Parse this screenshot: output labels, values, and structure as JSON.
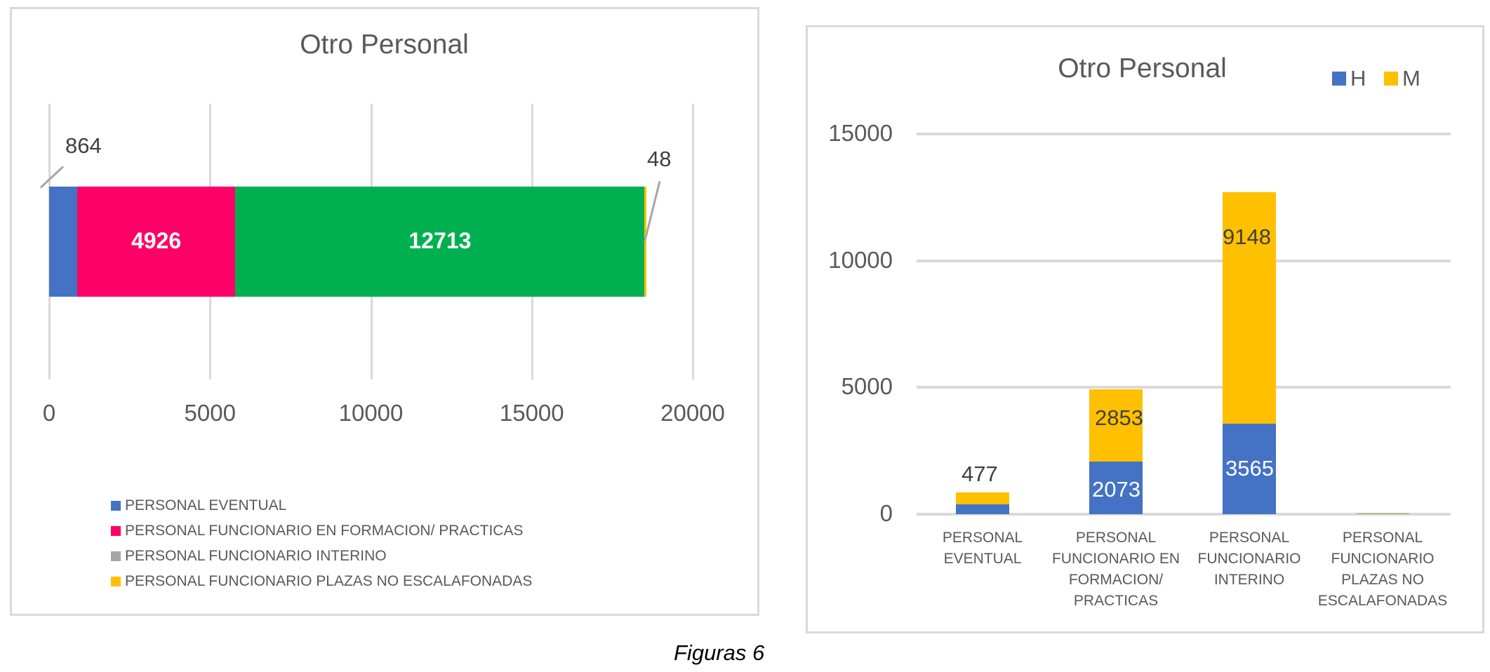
{
  "colors": {
    "eventual": "#4472C4",
    "formacion": "#FF0066",
    "interino": "#00B050",
    "interino_legend": "#A5A5A5",
    "escalafonadas": "#FFC000",
    "h": "#4472C4",
    "m": "#FFC000",
    "grid": "#D9D9D9",
    "text": "#595959"
  },
  "left_chart": {
    "title": "Otro Personal",
    "ticks": [
      "0",
      "5000",
      "10000",
      "15000",
      "20000"
    ],
    "labels": {
      "eventual": "864",
      "formacion": "4926",
      "interino": "12713",
      "escalafonadas": "48"
    },
    "legend": [
      {
        "label": "PERSONAL EVENTUAL",
        "color": "#4472C4"
      },
      {
        "label": "PERSONAL FUNCIONARIO EN FORMACION/ PRACTICAS",
        "color": "#FF0066"
      },
      {
        "label": "PERSONAL FUNCIONARIO INTERINO",
        "color": "#A5A5A5"
      },
      {
        "label": "PERSONAL FUNCIONARIO PLAZAS NO ESCALAFONADAS",
        "color": "#FFC000"
      }
    ]
  },
  "right_chart": {
    "title": "Otro Personal",
    "legend": [
      {
        "label": "H",
        "color": "#4472C4"
      },
      {
        "label": "M",
        "color": "#FFC000"
      }
    ],
    "ticks": [
      "0",
      "5000",
      "10000",
      "15000"
    ],
    "categories": [
      {
        "line1": "PERSONAL",
        "line2": "EVENTUAL",
        "line3": "",
        "line4": ""
      },
      {
        "line1": "PERSONAL",
        "line2": "FUNCIONARIO EN",
        "line3": "FORMACION/",
        "line4": "PRACTICAS"
      },
      {
        "line1": "PERSONAL",
        "line2": "FUNCIONARIO",
        "line3": "INTERINO",
        "line4": ""
      },
      {
        "line1": "PERSONAL",
        "line2": "FUNCIONARIO",
        "line3": "PLAZAS NO",
        "line4": "ESCALAFONADAS"
      }
    ],
    "labels": {
      "eventual_m": "477",
      "formacion_h": "2073",
      "formacion_m": "2853",
      "interino_h": "3565",
      "interino_m": "9148"
    }
  },
  "caption": "Figuras 6",
  "chart_data": [
    {
      "type": "bar",
      "orientation": "horizontal-stacked",
      "title": "Otro Personal",
      "categories": [
        ""
      ],
      "series": [
        {
          "name": "PERSONAL EVENTUAL",
          "values": [
            864
          ]
        },
        {
          "name": "PERSONAL FUNCIONARIO EN FORMACION/ PRACTICAS",
          "values": [
            4926
          ]
        },
        {
          "name": "PERSONAL FUNCIONARIO INTERINO",
          "values": [
            12713
          ]
        },
        {
          "name": "PERSONAL FUNCIONARIO PLAZAS NO ESCALAFONADAS",
          "values": [
            48
          ]
        }
      ],
      "xlabel": "",
      "ylabel": "",
      "xlim": [
        0,
        20000
      ],
      "xticks": [
        0,
        5000,
        10000,
        15000,
        20000
      ],
      "grid": true,
      "legend_position": "bottom"
    },
    {
      "type": "bar",
      "orientation": "vertical-stacked",
      "title": "Otro Personal",
      "categories": [
        "PERSONAL EVENTUAL",
        "PERSONAL FUNCIONARIO EN FORMACION/ PRACTICAS",
        "PERSONAL FUNCIONARIO INTERINO",
        "PERSONAL FUNCIONARIO PLAZAS NO ESCALAFONADAS"
      ],
      "series": [
        {
          "name": "H",
          "values": [
            387,
            2073,
            3565,
            20
          ]
        },
        {
          "name": "M",
          "values": [
            477,
            2853,
            9148,
            28
          ]
        }
      ],
      "xlabel": "",
      "ylabel": "",
      "ylim": [
        0,
        15000
      ],
      "yticks": [
        0,
        5000,
        10000,
        15000
      ],
      "grid": true,
      "legend_position": "top-right"
    }
  ]
}
